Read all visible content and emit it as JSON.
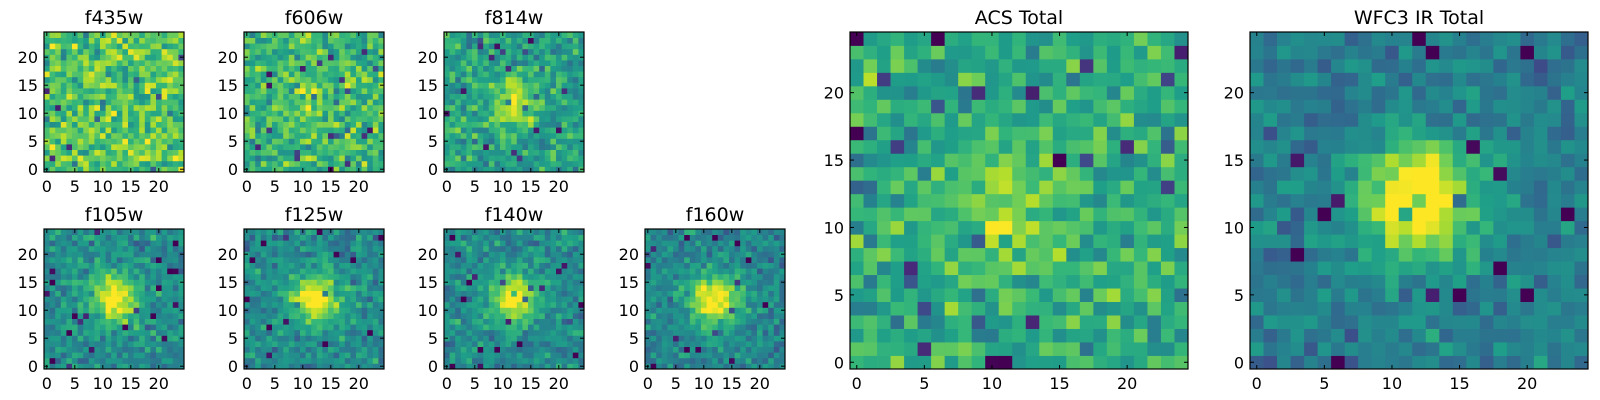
{
  "figure": {
    "description_visible": false
  },
  "chart_data": [
    {
      "type": "heatmap",
      "title": "f435w",
      "grid": "25x25",
      "xlim": [
        0,
        24
      ],
      "ylim": [
        0,
        24
      ],
      "xticks": [
        "0",
        "5",
        "10",
        "15",
        "20"
      ],
      "yticks": [
        "0",
        "5",
        "10",
        "15",
        "20"
      ],
      "colormap": "viridis",
      "source_peak": 0.0,
      "seed": 11
    },
    {
      "type": "heatmap",
      "title": "f606w",
      "grid": "25x25",
      "xlim": [
        0,
        24
      ],
      "ylim": [
        0,
        24
      ],
      "xticks": [
        "0",
        "5",
        "10",
        "15",
        "20"
      ],
      "yticks": [
        "0",
        "5",
        "10",
        "15",
        "20"
      ],
      "colormap": "viridis",
      "source_peak": 0.15,
      "seed": 23
    },
    {
      "type": "heatmap",
      "title": "f814w",
      "grid": "25x25",
      "xlim": [
        0,
        24
      ],
      "ylim": [
        0,
        24
      ],
      "xticks": [
        "0",
        "5",
        "10",
        "15",
        "20"
      ],
      "yticks": [
        "0",
        "5",
        "10",
        "15",
        "20"
      ],
      "colormap": "viridis",
      "source_peak": 0.35,
      "seed": 37
    },
    {
      "type": "heatmap",
      "title": "f105w",
      "grid": "25x25",
      "xlim": [
        0,
        24
      ],
      "ylim": [
        0,
        24
      ],
      "xticks": [
        "0",
        "5",
        "10",
        "15",
        "20"
      ],
      "yticks": [
        "0",
        "5",
        "10",
        "15",
        "20"
      ],
      "colormap": "viridis",
      "source_peak": 0.55,
      "seed": 41
    },
    {
      "type": "heatmap",
      "title": "f125w",
      "grid": "25x25",
      "xlim": [
        0,
        24
      ],
      "ylim": [
        0,
        24
      ],
      "xticks": [
        "0",
        "5",
        "10",
        "15",
        "20"
      ],
      "yticks": [
        "0",
        "5",
        "10",
        "15",
        "20"
      ],
      "colormap": "viridis",
      "source_peak": 0.55,
      "seed": 53
    },
    {
      "type": "heatmap",
      "title": "f140w",
      "grid": "25x25",
      "xlim": [
        0,
        24
      ],
      "ylim": [
        0,
        24
      ],
      "xticks": [
        "0",
        "5",
        "10",
        "15",
        "20"
      ],
      "yticks": [
        "0",
        "5",
        "10",
        "15",
        "20"
      ],
      "colormap": "viridis",
      "source_peak": 0.55,
      "seed": 67
    },
    {
      "type": "heatmap",
      "title": "f160w",
      "grid": "25x25",
      "xlim": [
        0,
        24
      ],
      "ylim": [
        0,
        24
      ],
      "xticks": [
        "0",
        "5",
        "10",
        "15",
        "20"
      ],
      "yticks": [
        "0",
        "5",
        "10",
        "15",
        "20"
      ],
      "colormap": "viridis",
      "source_peak": 0.6,
      "seed": 79
    },
    {
      "type": "heatmap",
      "title": "ACS Total",
      "grid": "25x25",
      "xlim": [
        0,
        24
      ],
      "ylim": [
        0,
        24
      ],
      "xticks": [
        "0",
        "5",
        "10",
        "15",
        "20"
      ],
      "yticks": [
        "0",
        "5",
        "10",
        "15",
        "20"
      ],
      "colormap": "viridis",
      "source_peak": 0.25,
      "seed": 83
    },
    {
      "type": "heatmap",
      "title": "WFC3 IR Total",
      "grid": "25x25",
      "xlim": [
        0,
        24
      ],
      "ylim": [
        0,
        24
      ],
      "xticks": [
        "0",
        "5",
        "10",
        "15",
        "20"
      ],
      "yticks": [
        "0",
        "5",
        "10",
        "15",
        "20"
      ],
      "colormap": "viridis",
      "source_peak": 0.7,
      "seed": 97
    }
  ]
}
